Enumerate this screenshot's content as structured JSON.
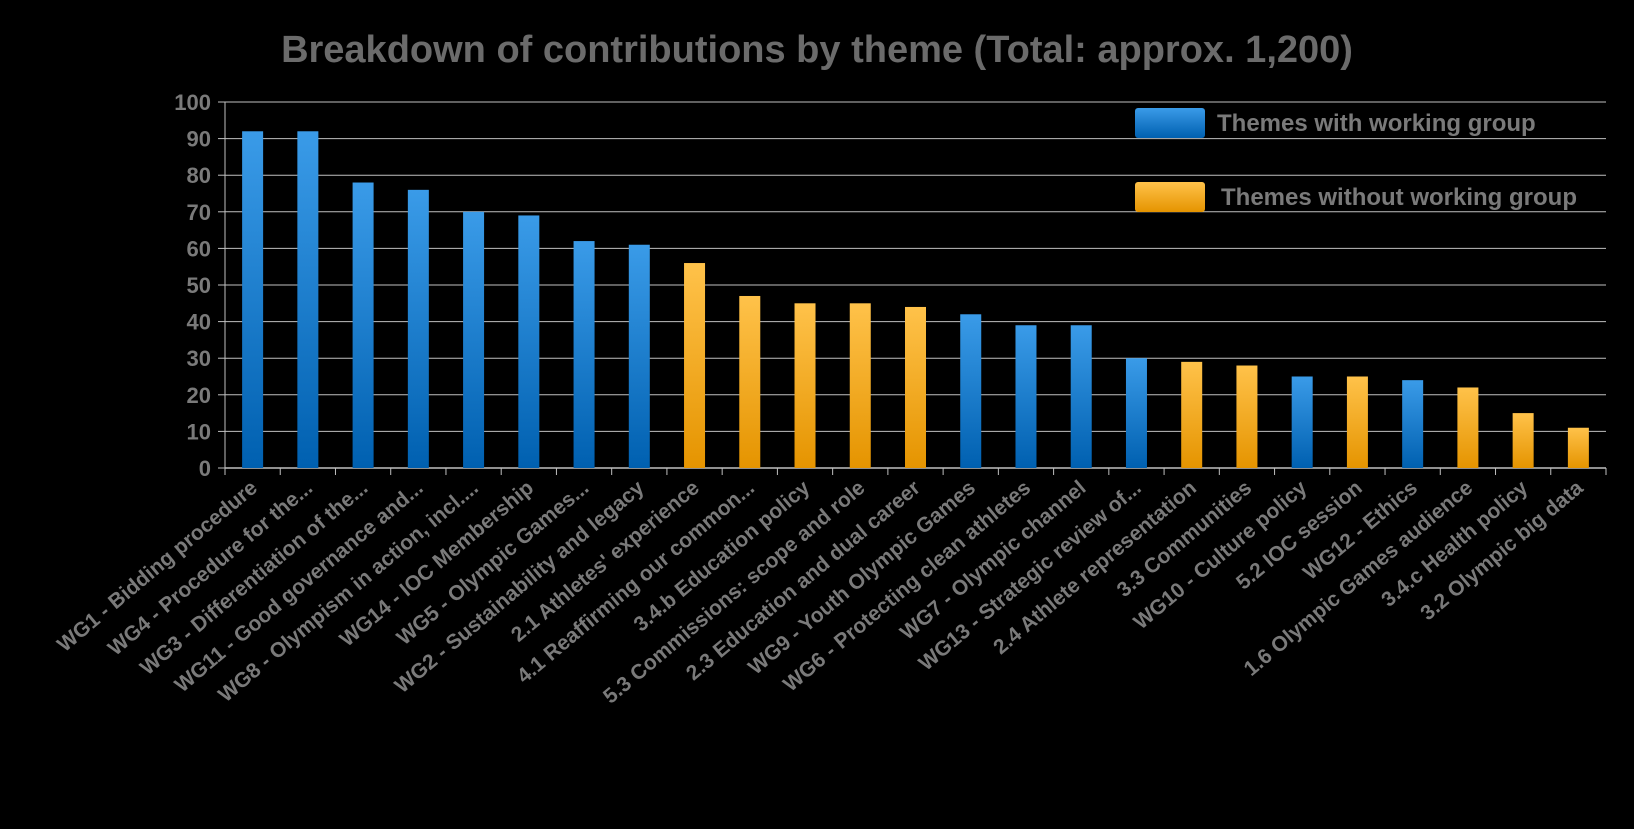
{
  "chart_data": {
    "type": "bar",
    "title": "Breakdown of contributions by theme (Total: approx. 1,200)",
    "xlabel": "",
    "ylabel": "",
    "ylim": [
      0,
      100
    ],
    "yticks": [
      0,
      10,
      20,
      30,
      40,
      50,
      60,
      70,
      80,
      90,
      100
    ],
    "grid": true,
    "legend_position": "top-right",
    "series": [
      {
        "name": "Themes with working group",
        "color": "#0070C0"
      },
      {
        "name": "Themes without working group",
        "color": "#F5A623"
      }
    ],
    "categories": [
      "WG1 - Bidding procedure",
      "WG4 - Procedure for the...",
      "WG3 - Differentiation of the...",
      "WG11 - Good governance and...",
      "WG8 - Olympism in action, incl....",
      "WG14 - IOC Membership",
      "WG5 - Olympic Games...",
      "WG2 - Sustainability and legacy",
      "2.1 Athletes' experience",
      "4.1 Reaffirming our common...",
      "3.4.b Education policy",
      "5.3 Commissions: scope and role",
      "2.3 Education and dual career",
      "WG9 - Youth Olympic Games",
      "WG6 - Protecting clean athletes",
      "WG7 - Olympic channel",
      "WG13 - Strategic review of...",
      "2.4 Athlete representation",
      "3.3 Communities",
      "WG10 - Culture policy",
      "5.2 IOC session",
      "WG12 - Ethics",
      "1.6 Olympic Games audience",
      "3.4.c Health policy",
      "3.2 Olympic big data"
    ],
    "values": [
      92,
      92,
      78,
      76,
      70,
      69,
      62,
      61,
      56,
      47,
      45,
      45,
      44,
      42,
      39,
      39,
      30,
      29,
      28,
      25,
      25,
      24,
      22,
      15,
      11
    ],
    "series_index": [
      0,
      0,
      0,
      0,
      0,
      0,
      0,
      0,
      1,
      1,
      1,
      1,
      1,
      0,
      0,
      0,
      0,
      1,
      1,
      0,
      1,
      0,
      1,
      1,
      1
    ]
  }
}
